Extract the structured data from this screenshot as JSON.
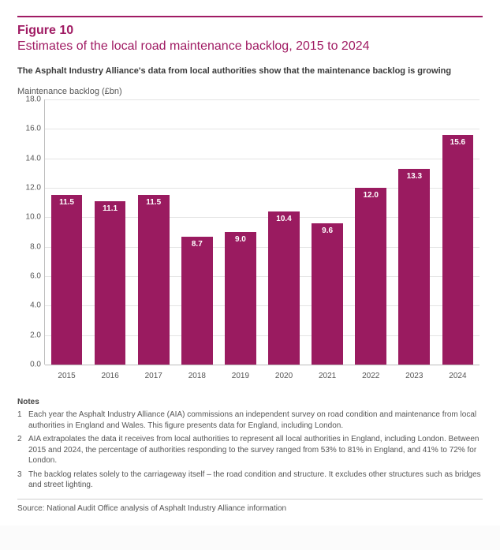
{
  "figure": {
    "number": "Figure 10",
    "title": "Estimates of the local road maintenance backlog, 2015 to 2024",
    "subhead": "The Asphalt Industry Alliance's data from local authorities show that the maintenance backlog is growing",
    "y_axis_label": "Maintenance backlog (£bn)"
  },
  "chart": {
    "type": "bar",
    "categories": [
      "2015",
      "2016",
      "2017",
      "2018",
      "2019",
      "2020",
      "2021",
      "2022",
      "2023",
      "2024"
    ],
    "values": [
      11.5,
      11.1,
      11.5,
      8.7,
      9.0,
      10.4,
      9.6,
      12.0,
      13.3,
      15.6
    ],
    "value_labels": [
      "11.5",
      "11.1",
      "11.5",
      "8.7",
      "9.0",
      "10.4",
      "9.6",
      "12.0",
      "13.3",
      "15.6"
    ],
    "bar_color": "#9a1b60",
    "value_label_color": "#ffffff",
    "ylim": [
      0,
      18
    ],
    "ytick_step": 2.0,
    "yticks": [
      "0.0",
      "2.0",
      "4.0",
      "6.0",
      "8.0",
      "10.0",
      "12.0",
      "14.0",
      "16.0",
      "18.0"
    ],
    "background_color": "#ffffff",
    "grid_color": "#e4e4e4",
    "axis_color": "#bdbdbd",
    "label_fontsize": 10,
    "title_color": "#a01b63",
    "bar_width": 0.72
  },
  "notes": {
    "heading": "Notes",
    "items": [
      {
        "n": "1",
        "t": "Each year the Asphalt Industry Alliance (AIA) commissions an independent survey on road condition and maintenance from local authorities in England and Wales. This figure presents data for England, including London."
      },
      {
        "n": "2",
        "t": "AIA extrapolates the data it receives from local authorities to represent all local authorities in England, including London. Between 2015 and 2024, the percentage of authorities responding to the survey ranged from 53% to 81% in England, and 41% to 72% for London."
      },
      {
        "n": "3",
        "t": "The backlog relates solely to the carriageway itself – the road condition and structure. It excludes other structures such as bridges and street lighting."
      }
    ]
  },
  "source": "Source: National Audit Office analysis of Asphalt Industry Alliance information"
}
